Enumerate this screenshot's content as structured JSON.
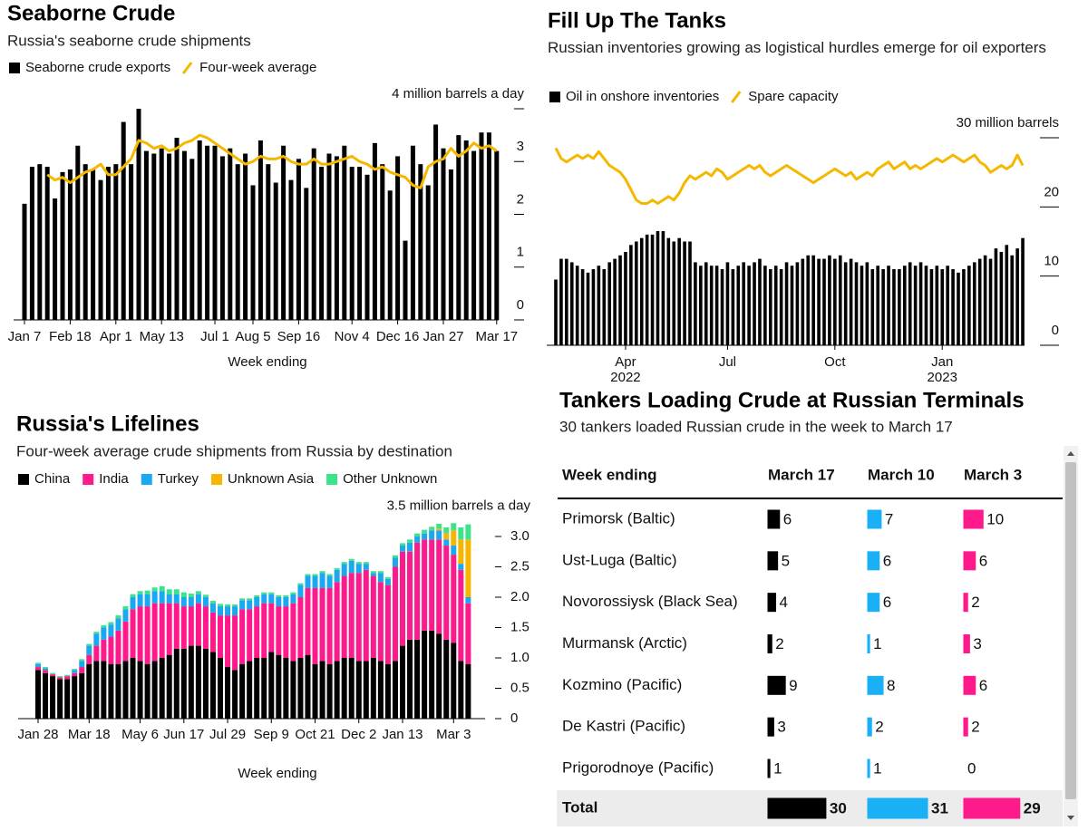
{
  "chart_data": [
    {
      "type": "bar",
      "title": "Seaborne Crude",
      "subtitle": "Russia's seaborne crude shipments",
      "x_label": "Week ending",
      "categories": [
        "Jan 7",
        null,
        null,
        null,
        null,
        null,
        "Feb 18",
        null,
        null,
        null,
        null,
        null,
        "Apr 1",
        null,
        null,
        null,
        null,
        null,
        "May 13",
        null,
        null,
        null,
        null,
        null,
        null,
        "Jul 1",
        null,
        null,
        null,
        null,
        "Aug 5",
        null,
        null,
        null,
        null,
        null,
        "Sep 16",
        null,
        null,
        null,
        null,
        null,
        null,
        "Nov 4",
        null,
        null,
        null,
        null,
        null,
        "Dec 16",
        null,
        null,
        null,
        null,
        null,
        "Jan 27",
        null,
        null,
        null,
        null,
        null,
        null,
        "Mar 17"
      ],
      "series": [
        {
          "name": "Seaborne crude exports",
          "type": "bar",
          "color": "#000000",
          "values": [
            2.2,
            2.9,
            2.95,
            2.9,
            2.3,
            2.8,
            2.85,
            3.3,
            2.95,
            2.85,
            2.65,
            2.9,
            2.95,
            3.75,
            2.95,
            4.0,
            3.2,
            3.15,
            3.25,
            3.15,
            3.45,
            3.2,
            3.05,
            3.4,
            3.3,
            3.3,
            3.1,
            3.25,
            2.95,
            3.15,
            2.55,
            3.4,
            2.95,
            2.6,
            3.3,
            2.65,
            3.05,
            2.5,
            3.25,
            2.9,
            3.15,
            3.1,
            3.3,
            2.9,
            2.9,
            2.75,
            3.35,
            2.95,
            2.45,
            3.1,
            1.5,
            3.3,
            2.95,
            2.55,
            3.7,
            3.25,
            2.85,
            3.5,
            3.4,
            3.2,
            3.55,
            3.55,
            3.2
          ]
        },
        {
          "name": "Four-week average",
          "type": "line",
          "color": "#f5b800",
          "values": [
            null,
            null,
            null,
            2.75,
            2.65,
            2.7,
            2.6,
            2.7,
            2.8,
            2.85,
            2.95,
            2.75,
            2.75,
            2.9,
            3.05,
            3.4,
            3.35,
            3.25,
            3.3,
            3.2,
            3.25,
            3.35,
            3.4,
            3.5,
            3.45,
            3.35,
            3.25,
            3.15,
            3.05,
            2.95,
            3.0,
            3.1,
            3.05,
            3.05,
            3.1,
            3.0,
            2.95,
            2.95,
            3.05,
            2.95,
            2.95,
            3.0,
            3.05,
            3.1,
            3.0,
            2.95,
            2.85,
            2.9,
            2.8,
            2.75,
            2.7,
            2.55,
            2.5,
            2.9,
            3.0,
            3.05,
            3.25,
            3.1,
            3.2,
            3.35,
            3.25,
            3.3,
            3.2
          ]
        }
      ],
      "ylim": [
        0,
        4
      ],
      "yticks": [
        0,
        1,
        2,
        3,
        {
          "value": 4,
          "label": "4 million barrels a day"
        }
      ]
    },
    {
      "type": "bar",
      "title": "Fill Up The Tanks",
      "subtitle": "Russian inventories growing as logistical hurdles emerge for oil exporters",
      "categories": [
        null,
        null,
        null,
        null,
        null,
        null,
        null,
        null,
        null,
        null,
        null,
        null,
        null,
        "Apr\n2022",
        null,
        null,
        null,
        null,
        null,
        null,
        null,
        null,
        null,
        null,
        null,
        null,
        null,
        null,
        null,
        null,
        null,
        null,
        "Jul",
        null,
        null,
        null,
        null,
        null,
        null,
        null,
        null,
        null,
        null,
        null,
        null,
        null,
        null,
        null,
        null,
        null,
        null,
        null,
        "Oct",
        null,
        null,
        null,
        null,
        null,
        null,
        null,
        null,
        null,
        null,
        null,
        null,
        null,
        null,
        null,
        null,
        null,
        null,
        null,
        "Jan\n2023",
        null,
        null,
        null,
        null,
        null,
        null,
        null,
        null,
        null,
        null,
        null,
        null,
        null,
        null,
        null
      ],
      "series": [
        {
          "name": "Oil in onshore inventories",
          "type": "bar",
          "color": "#000000",
          "values": [
            9.5,
            12.5,
            12.5,
            12,
            11.5,
            11,
            10.5,
            11,
            11.5,
            11,
            12,
            12.5,
            13,
            13.5,
            14.5,
            15,
            15.5,
            16,
            16,
            16.5,
            16.5,
            15.5,
            15,
            15.5,
            15,
            15,
            12,
            11.5,
            12,
            11.5,
            11.5,
            11,
            12,
            11,
            11.5,
            12,
            11.5,
            12,
            12.5,
            11.5,
            11,
            11.5,
            11,
            12,
            11.5,
            12,
            12.5,
            13,
            13,
            12.5,
            12.5,
            13,
            12.5,
            13,
            12,
            12.5,
            12,
            11.5,
            12,
            11,
            11.5,
            11,
            11.5,
            11,
            11,
            11.5,
            12,
            11.5,
            12,
            11.5,
            11,
            11.5,
            11,
            11.5,
            11,
            10.5,
            11,
            11.5,
            12,
            12.5,
            13,
            12.5,
            14,
            13.5,
            14.5,
            13,
            14,
            15.5
          ]
        },
        {
          "name": "Spare capacity",
          "type": "line",
          "color": "#f5b800",
          "values": [
            28.5,
            27,
            26.5,
            27,
            27.5,
            27,
            27.5,
            27,
            28,
            27,
            26,
            25.5,
            25,
            24,
            22.5,
            21,
            20.5,
            20.5,
            21,
            20.5,
            21,
            21.5,
            21,
            22,
            23.5,
            24.5,
            24,
            24.5,
            25,
            24.5,
            25.5,
            25,
            24,
            24.5,
            25,
            25.5,
            26,
            25.5,
            26,
            25,
            24.5,
            25,
            25.5,
            26,
            25.5,
            25,
            24.5,
            24,
            23.5,
            24,
            24.5,
            25,
            25.5,
            25,
            24.5,
            25,
            24,
            24.5,
            25,
            24.5,
            25.5,
            26,
            26.5,
            25.5,
            26,
            26.5,
            25.5,
            26,
            25.5,
            26,
            26.5,
            27,
            26.5,
            27,
            27.5,
            27,
            26.5,
            27,
            27.5,
            26.5,
            26,
            25,
            25.5,
            26,
            25.5,
            26,
            27.5,
            26
          ]
        }
      ],
      "ylim": [
        0,
        30
      ],
      "yticks": [
        0,
        10,
        20,
        {
          "value": 30,
          "label": "30 million barrels"
        }
      ]
    },
    {
      "type": "stacked_bar",
      "title": "Russia's Lifelines",
      "subtitle": "Four-week average crude shipments from Russia by destination",
      "x_label": "Week ending",
      "categories": [
        "Jan 28",
        null,
        null,
        null,
        null,
        null,
        null,
        "Mar 18",
        null,
        null,
        null,
        null,
        null,
        null,
        "May 6",
        null,
        null,
        null,
        null,
        null,
        "Jun 17",
        null,
        null,
        null,
        null,
        null,
        "Jul 29",
        null,
        null,
        null,
        null,
        null,
        "Sep 9",
        null,
        null,
        null,
        null,
        null,
        "Oct 21",
        null,
        null,
        null,
        null,
        null,
        "Dec 2",
        null,
        null,
        null,
        null,
        null,
        "Jan 13",
        null,
        null,
        null,
        null,
        null,
        null,
        "Mar 3",
        null,
        null
      ],
      "series": [
        {
          "name": "China",
          "color": "#000000",
          "values": [
            0.8,
            0.75,
            0.7,
            0.65,
            0.65,
            0.7,
            0.75,
            0.9,
            0.95,
            0.95,
            0.9,
            0.9,
            0.95,
            1.0,
            0.95,
            0.9,
            0.95,
            1.0,
            1.05,
            1.15,
            1.15,
            1.2,
            1.2,
            1.15,
            1.1,
            1.0,
            0.85,
            0.8,
            0.9,
            0.95,
            1.0,
            1.0,
            1.1,
            1.05,
            1.0,
            0.95,
            1.0,
            1.05,
            0.9,
            0.95,
            0.9,
            0.95,
            1.0,
            1.0,
            0.95,
            0.95,
            1.0,
            0.95,
            0.9,
            0.95,
            1.2,
            1.3,
            1.3,
            1.45,
            1.45,
            1.4,
            1.3,
            1.25,
            0.95,
            0.9
          ]
        },
        {
          "name": "India",
          "color": "#ff1a8c",
          "values": [
            0.05,
            0.05,
            0.03,
            0.03,
            0.05,
            0.05,
            0.1,
            0.15,
            0.25,
            0.35,
            0.45,
            0.55,
            0.65,
            0.8,
            0.9,
            0.95,
            0.95,
            0.9,
            0.85,
            0.75,
            0.7,
            0.65,
            0.7,
            0.7,
            0.65,
            0.7,
            0.85,
            0.9,
            0.9,
            0.85,
            0.85,
            0.9,
            0.8,
            0.8,
            0.85,
            0.95,
            1.0,
            1.1,
            1.25,
            1.2,
            1.25,
            1.3,
            1.35,
            1.4,
            1.45,
            1.5,
            1.35,
            1.3,
            1.3,
            1.55,
            1.55,
            1.45,
            1.6,
            1.5,
            1.5,
            1.55,
            1.55,
            1.45,
            1.5,
            1.0
          ]
        },
        {
          "name": "Turkey",
          "color": "#1aa9f0",
          "values": [
            0.05,
            0.03,
            0.0,
            0.0,
            0.0,
            0.05,
            0.1,
            0.15,
            0.2,
            0.2,
            0.2,
            0.2,
            0.2,
            0.2,
            0.2,
            0.2,
            0.2,
            0.2,
            0.15,
            0.15,
            0.15,
            0.15,
            0.15,
            0.15,
            0.15,
            0.15,
            0.15,
            0.15,
            0.15,
            0.15,
            0.15,
            0.15,
            0.15,
            0.15,
            0.15,
            0.15,
            0.2,
            0.2,
            0.2,
            0.25,
            0.2,
            0.2,
            0.2,
            0.2,
            0.15,
            0.1,
            0.05,
            0.15,
            0.1,
            0.15,
            0.1,
            0.15,
            0.1,
            0.1,
            0.15,
            0.15,
            0.1,
            0.15,
            0.1,
            0.1
          ]
        },
        {
          "name": "Unknown Asia",
          "color": "#f7b500",
          "values": [
            0,
            0,
            0,
            0,
            0,
            0,
            0,
            0,
            0,
            0,
            0,
            0,
            0,
            0,
            0,
            0,
            0,
            0,
            0,
            0,
            0,
            0,
            0,
            0,
            0,
            0,
            0,
            0,
            0,
            0,
            0,
            0,
            0,
            0,
            0,
            0,
            0,
            0,
            0,
            0,
            0,
            0,
            0,
            0,
            0,
            0,
            0,
            0,
            0,
            0,
            0,
            0,
            0,
            0,
            0,
            0.03,
            0.1,
            0.25,
            0.4,
            0.95
          ]
        },
        {
          "name": "Other Unknown",
          "color": "#3de38b",
          "values": [
            0.02,
            0.02,
            0.02,
            0.02,
            0.02,
            0.02,
            0.03,
            0.03,
            0.03,
            0.04,
            0.04,
            0.05,
            0.05,
            0.05,
            0.05,
            0.06,
            0.06,
            0.08,
            0.08,
            0.08,
            0.08,
            0.06,
            0.05,
            0.04,
            0.04,
            0.04,
            0.03,
            0.03,
            0.03,
            0.03,
            0.03,
            0.03,
            0.03,
            0.03,
            0.03,
            0.03,
            0.03,
            0.03,
            0.03,
            0.03,
            0.03,
            0.03,
            0.03,
            0.03,
            0.03,
            0.03,
            0.03,
            0.03,
            0.03,
            0.04,
            0.04,
            0.05,
            0.05,
            0.06,
            0.06,
            0.08,
            0.1,
            0.12,
            0.2,
            0.25
          ]
        }
      ],
      "ylim": [
        0,
        3.5
      ],
      "yticks": [
        0,
        0.5,
        {
          "value": 1,
          "label": "1.0"
        },
        1.5,
        {
          "value": 2,
          "label": "2.0"
        },
        2.5,
        {
          "value": 3,
          "label": "3.0"
        },
        {
          "value": 3.5,
          "label": "3.5 million barrels a day"
        }
      ]
    }
  ],
  "table": {
    "title": "Tankers Loading Crude at Russian Terminals",
    "subtitle": "30 tankers loaded Russian crude in the week to March 17",
    "header": [
      "Week ending",
      "March 17",
      "March 10",
      "March 3"
    ],
    "column_colors": [
      "#000000",
      "#1ab0f5",
      "#ff1a8c"
    ],
    "rows": [
      [
        "Primorsk (Baltic)",
        6,
        7,
        10
      ],
      [
        "Ust-Luga (Baltic)",
        5,
        6,
        6
      ],
      [
        "Novorossiysk (Black Sea)",
        4,
        6,
        2
      ],
      [
        "Murmansk (Arctic)",
        2,
        1,
        3
      ],
      [
        "Kozmino (Pacific)",
        9,
        8,
        6
      ],
      [
        "De Kastri (Pacific)",
        3,
        2,
        2
      ],
      [
        "Prigorodnoye (Pacific)",
        1,
        1,
        0
      ]
    ],
    "total": [
      "Total",
      30,
      31,
      29
    ]
  }
}
